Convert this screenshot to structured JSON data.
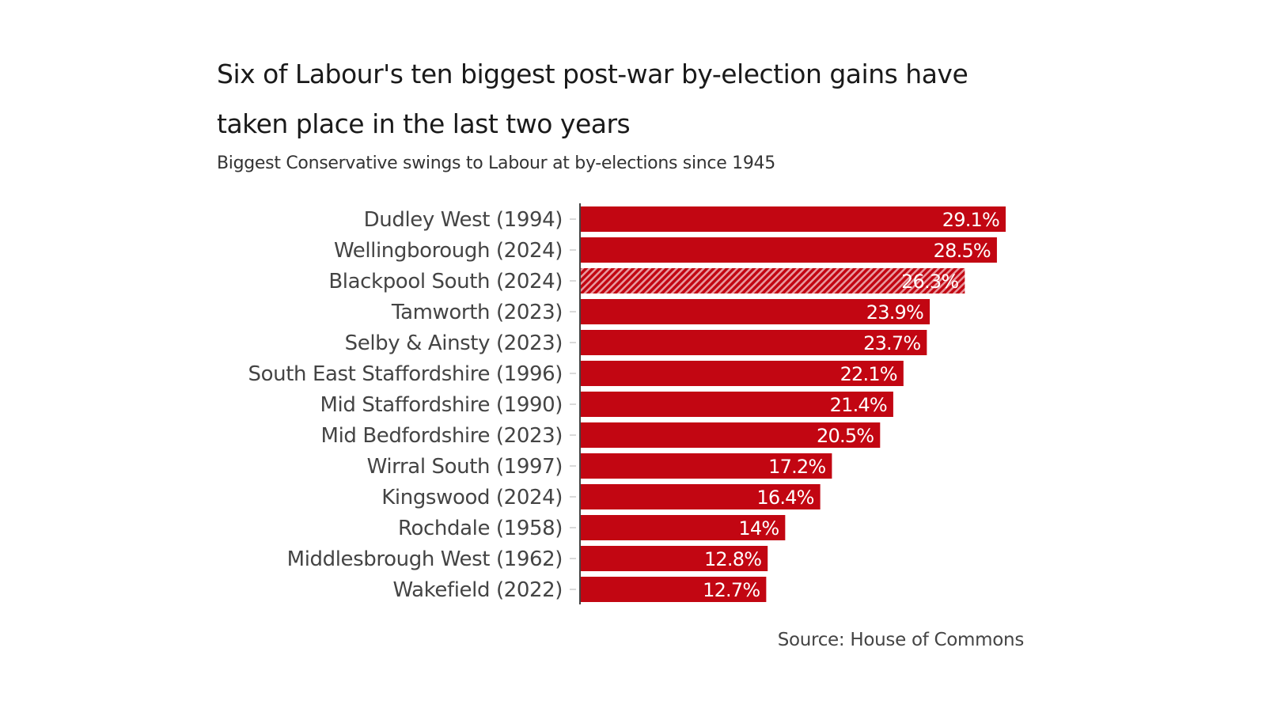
{
  "title": "Six of Labour's ten biggest post-war by-election gains have taken place in the last two years",
  "subtitle": "Biggest Conservative swings to Labour at by-elections since 1945",
  "source": "Source: House of Commons",
  "chart_data": {
    "type": "bar",
    "orientation": "horizontal",
    "title": "Six of Labour's ten biggest post-war by-election gains have taken place in the last two years",
    "subtitle": "Biggest Conservative swings to Labour at by-elections since 1945",
    "categories": [
      "Dudley West (1994)",
      "Wellingborough (2024)",
      "Blackpool South (2024)",
      "Tamworth (2023)",
      "Selby & Ainsty (2023)",
      "South East Staffordshire (1996)",
      "Mid Staffordshire (1990)",
      "Mid Bedfordshire (2023)",
      "Wirral South (1997)",
      "Kingswood (2024)",
      "Rochdale (1958)",
      "Middlesbrough West (1962)",
      "Wakefield (2022)"
    ],
    "values": [
      29.1,
      28.5,
      26.3,
      23.9,
      23.7,
      22.1,
      21.4,
      20.5,
      17.2,
      16.4,
      14,
      12.8,
      12.7
    ],
    "data_labels": [
      "29.1%",
      "28.5%",
      "26.3%",
      "23.9%",
      "23.7%",
      "22.1%",
      "21.4%",
      "20.5%",
      "17.2%",
      "16.4%",
      "14%",
      "12.8%",
      "12.7%"
    ],
    "hatched": [
      "Blackpool South (2024)"
    ],
    "xlim": [
      0,
      29.1
    ],
    "grid": false,
    "colors": {
      "bar": "#c20612",
      "hatch_light": "#e89aa0"
    }
  }
}
